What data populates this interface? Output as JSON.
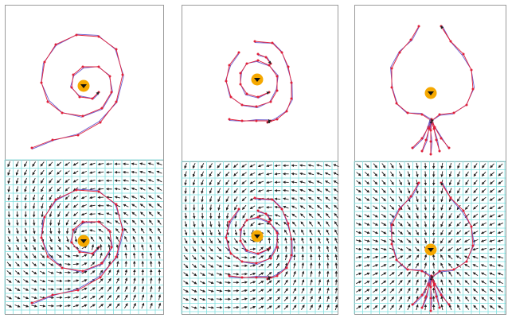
{
  "figure": {
    "colors": {
      "panel_border": "#9a9a9a",
      "grid": "#7fe0e0",
      "arrow": "#222222",
      "demo_path": "#6a5acd",
      "learned_path": "#e0203a",
      "marker": "#e0203a",
      "target_fill": "#f5a800",
      "target_icon": "#111111"
    },
    "icons": {
      "target": "triangle-down-icon"
    },
    "columns": [
      {
        "id": "spiral",
        "field": "rotational",
        "target": [
          105,
          108
        ],
        "trajectories": [
          [
            [
              40,
              186
            ],
            [
              66,
              176
            ],
            [
              98,
              170
            ],
            [
              126,
              154
            ],
            [
              146,
              128
            ],
            [
              154,
              94
            ],
            [
              146,
              62
            ],
            [
              124,
              46
            ],
            [
              96,
              44
            ],
            [
              70,
              56
            ],
            [
              56,
              78
            ],
            [
              52,
              104
            ],
            [
              60,
              128
            ],
            [
              78,
              142
            ],
            [
              104,
              146
            ],
            [
              128,
              136
            ],
            [
              140,
              116
            ],
            [
              138,
              96
            ],
            [
              124,
              84
            ],
            [
              104,
              84
            ],
            [
              92,
              94
            ],
            [
              90,
              110
            ],
            [
              100,
              122
            ],
            [
              116,
              124
            ],
            [
              124,
              116
            ]
          ]
        ]
      },
      {
        "id": "swirl",
        "field": "rotational",
        "target": [
          323,
          100
        ],
        "trajectories": [
          [
            [
              300,
              66
            ],
            [
              288,
              82
            ],
            [
              284,
              102
            ],
            [
              290,
              122
            ],
            [
              304,
              132
            ],
            [
              322,
              134
            ],
            [
              340,
              128
            ],
            [
              348,
              114
            ],
            [
              348,
              96
            ],
            [
              338,
              82
            ],
            [
              324,
              76
            ],
            [
              310,
              80
            ],
            [
              302,
              92
            ],
            [
              302,
              106
            ],
            [
              310,
              118
            ],
            [
              324,
              122
            ],
            [
              338,
              116
            ]
          ],
          [
            [
              320,
              52
            ],
            [
              342,
              54
            ],
            [
              354,
              66
            ],
            [
              362,
              84
            ],
            [
              366,
              104
            ],
            [
              366,
              124
            ],
            [
              360,
              140
            ],
            [
              348,
              150
            ],
            [
              336,
              154
            ]
          ],
          [
            [
              324,
              68
            ],
            [
              334,
              72
            ],
            [
              340,
              80
            ]
          ],
          [
            [
              288,
              150
            ],
            [
              304,
              152
            ],
            [
              322,
              152
            ],
            [
              340,
              152
            ]
          ]
        ]
      },
      {
        "id": "pear",
        "field": "sink",
        "target": [
          541,
          117
        ],
        "trajectories": [
          [
            [
              526,
              33
            ],
            [
              516,
              50
            ],
            [
              502,
              66
            ],
            [
              492,
              86
            ],
            [
              492,
              110
            ],
            [
              498,
              130
            ],
            [
              512,
              142
            ],
            [
              530,
              144
            ],
            [
              542,
              152
            ],
            [
              552,
              144
            ],
            [
              570,
              142
            ],
            [
              586,
              132
            ],
            [
              594,
              112
            ],
            [
              592,
              88
            ],
            [
              582,
              68
            ],
            [
              566,
              52
            ],
            [
              554,
              33
            ]
          ],
          [
            [
              518,
              186
            ],
            [
              530,
              174
            ],
            [
              538,
              160
            ],
            [
              542,
              150
            ]
          ],
          [
            [
              530,
              190
            ],
            [
              535,
              176
            ],
            [
              539,
              162
            ],
            [
              542,
              152
            ]
          ],
          [
            [
              541,
              194
            ],
            [
              541,
              178
            ],
            [
              541,
              164
            ],
            [
              542,
              152
            ]
          ],
          [
            [
              552,
              190
            ],
            [
              548,
              176
            ],
            [
              545,
              162
            ],
            [
              542,
              152
            ]
          ],
          [
            [
              564,
              186
            ],
            [
              554,
              174
            ],
            [
              546,
              160
            ],
            [
              542,
              150
            ]
          ]
        ]
      }
    ]
  }
}
